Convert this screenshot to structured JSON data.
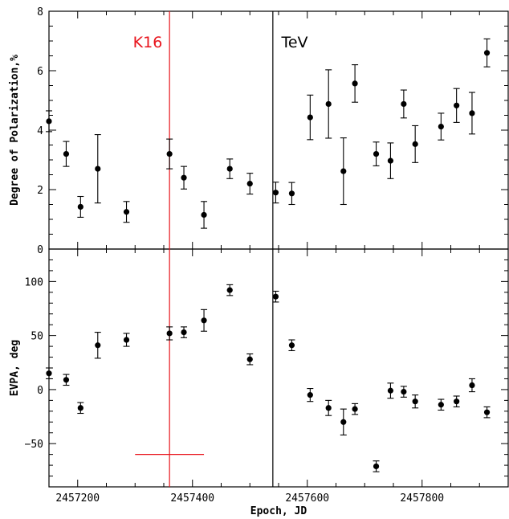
{
  "chart_data": [
    {
      "type": "scatter",
      "panel": "top",
      "title": "",
      "xlabel": "",
      "ylabel": "Degree of Polarization,%",
      "xlim": [
        2457150,
        2457950
      ],
      "ylim": [
        0,
        8
      ],
      "yticks": [
        0,
        2,
        4,
        6,
        8
      ],
      "yticklabels": [
        "0",
        "2",
        "4",
        "6",
        "8"
      ],
      "series": [
        {
          "error_bars": true,
          "x": [
            2457150,
            2457180,
            2457205,
            2457235,
            2457285,
            2457360,
            2457385,
            2457420,
            2457465,
            2457500,
            2457545,
            2457573,
            2457605,
            2457637,
            2457663,
            2457683,
            2457720,
            2457745,
            2457768,
            2457788,
            2457833,
            2457860,
            2457887,
            2457913
          ],
          "y": [
            4.3,
            3.2,
            1.42,
            2.7,
            1.25,
            3.2,
            2.4,
            1.15,
            2.7,
            2.2,
            1.9,
            1.87,
            4.43,
            4.88,
            2.62,
            5.57,
            3.2,
            2.97,
            4.88,
            3.53,
            4.12,
            4.83,
            4.57,
            6.6
          ],
          "yerr": [
            0.35,
            0.42,
            0.35,
            1.15,
            0.35,
            0.5,
            0.38,
            0.45,
            0.33,
            0.35,
            0.35,
            0.37,
            0.75,
            1.15,
            1.12,
            0.63,
            0.4,
            0.6,
            0.47,
            0.62,
            0.45,
            0.57,
            0.7,
            0.47
          ]
        }
      ]
    },
    {
      "type": "scatter",
      "panel": "bottom",
      "title": "",
      "xlabel": "Epoch, JD",
      "ylabel": "EVPA, deg",
      "xlim": [
        2457150,
        2457950
      ],
      "ylim": [
        -90,
        130
      ],
      "xticks": [
        2457200,
        2457400,
        2457600,
        2457800
      ],
      "xticklabels": [
        "2457200",
        "2457400",
        "2457600",
        "2457800"
      ],
      "yticks": [
        -50,
        0,
        50,
        100
      ],
      "yticklabels": [
        "−50",
        "0",
        "50",
        "100"
      ],
      "series": [
        {
          "error_bars": true,
          "x": [
            2457150,
            2457180,
            2457205,
            2457235,
            2457285,
            2457360,
            2457385,
            2457420,
            2457465,
            2457500,
            2457545,
            2457573,
            2457605,
            2457637,
            2457663,
            2457683,
            2457720,
            2457745,
            2457768,
            2457788,
            2457833,
            2457860,
            2457887,
            2457913
          ],
          "y": [
            15,
            9,
            -17,
            41,
            46,
            52,
            53,
            64,
            92,
            28,
            86,
            41,
            -5,
            -17,
            -30,
            -18,
            -71,
            -1,
            -2,
            -11,
            -14,
            -11,
            4,
            -21
          ],
          "yerr": [
            5,
            5,
            5,
            12,
            6,
            6,
            5,
            10,
            5,
            5,
            5,
            5,
            6,
            7,
            12,
            5,
            5,
            7,
            5,
            6,
            5,
            5,
            6,
            5
          ]
        }
      ],
      "cross_marker": {
        "x": 2457360,
        "y": -60,
        "xerr": 60
      }
    }
  ],
  "annotations": {
    "k16_label": "K16",
    "k16_epoch": 2457360,
    "k16_color": "#e8141c",
    "tev_label": "TeV",
    "tev_epoch": 2457540,
    "tev_color": "#000000"
  }
}
